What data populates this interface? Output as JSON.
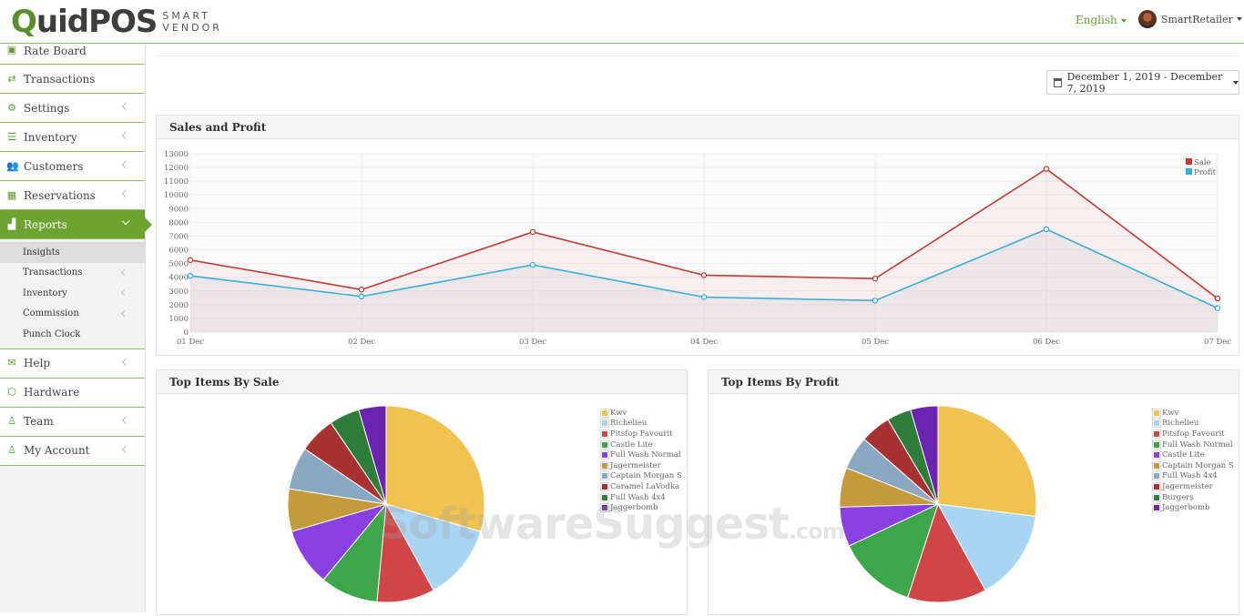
{
  "header": {
    "logo_main": "QuidPOS",
    "logo_sub_1": "SMART",
    "logo_sub_2": "VENDOR",
    "language": "English",
    "user_name": "SmartRetailer"
  },
  "sidebar": {
    "items": [
      {
        "label": "Rate Board",
        "icon": "rate-board-icon"
      },
      {
        "label": "Transactions",
        "icon": "exchange-icon"
      },
      {
        "label": "Settings",
        "icon": "gear-icon"
      },
      {
        "label": "Inventory",
        "icon": "list-icon"
      },
      {
        "label": "Customers",
        "icon": "users-icon"
      },
      {
        "label": "Reservations",
        "icon": "calendar-icon"
      },
      {
        "label": "Reports",
        "icon": "bar-chart-icon"
      },
      {
        "label": "Help",
        "icon": "envelope-icon"
      },
      {
        "label": "Hardware",
        "icon": "cube-icon"
      },
      {
        "label": "Team",
        "icon": "team-icon"
      },
      {
        "label": "My Account",
        "icon": "user-icon"
      }
    ],
    "reports_sub": [
      {
        "label": "Insights"
      },
      {
        "label": "Transactions"
      },
      {
        "label": "Inventory"
      },
      {
        "label": "Commission"
      },
      {
        "label": "Punch Clock"
      }
    ]
  },
  "date_range": "December 1, 2019 - December 7, 2019",
  "panels": {
    "sales_profit_title": "Sales and Profit",
    "top_sale_title": "Top Items By Sale",
    "top_profit_title": "Top Items By Profit"
  },
  "watermark": {
    "main": "SoftwareSuggest",
    "suffix": ".com"
  },
  "chart_data": [
    {
      "type": "line",
      "title": "Sales and Profit",
      "categories": [
        "01 Dec",
        "02 Dec",
        "03 Dec",
        "04 Dec",
        "05 Dec",
        "06 Dec",
        "07 Dec"
      ],
      "series": [
        {
          "name": "Sale",
          "color": "#c23b35",
          "values": [
            5250,
            3100,
            7300,
            4150,
            3900,
            11900,
            2450
          ]
        },
        {
          "name": "Profit",
          "color": "#3aaedb",
          "values": [
            4100,
            2600,
            4900,
            2550,
            2300,
            7500,
            1750
          ]
        }
      ],
      "ylim": [
        0,
        13000
      ],
      "yticks": [
        0,
        1000,
        2000,
        3000,
        4000,
        5000,
        6000,
        7000,
        8000,
        9000,
        10000,
        11000,
        12000,
        13000
      ],
      "grid": true,
      "legend": "top-right"
    },
    {
      "type": "pie",
      "title": "Top Items By Sale",
      "labels": [
        "Kwv",
        "Richelieu",
        "Pitsfop Favourit",
        "Castle Lite",
        "Full Wash Normal",
        "Jagermeister",
        "Captain Morgan S",
        "Caramel LaVodka",
        "Full Wash 4x4",
        "Jaggerbomb"
      ],
      "values": [
        29.5,
        12.5,
        9.5,
        9.5,
        9.5,
        7.0,
        7.0,
        6.0,
        5.0,
        4.5
      ],
      "colors": [
        "#f0c350",
        "#a9d5f3",
        "#d04545",
        "#3da54a",
        "#8a3fe0",
        "#c49a3c",
        "#8aa8c2",
        "#a83232",
        "#2e7d3a",
        "#6a24b0"
      ],
      "legend": "right"
    },
    {
      "type": "pie",
      "title": "Top Items By Profit",
      "labels": [
        "Kwv",
        "Richelieu",
        "Pitsfop Favourit",
        "Full Wash Normal",
        "Castle Lite",
        "Captain Morgan S",
        "Full Wash 4x4",
        "Jagermeister",
        "Burgers",
        "Jaggerbomb"
      ],
      "values": [
        27.0,
        15.0,
        13.0,
        13.0,
        6.5,
        6.5,
        5.5,
        5.0,
        4.0,
        4.5
      ],
      "colors": [
        "#f0c350",
        "#a9d5f3",
        "#d04545",
        "#3da54a",
        "#8a3fe0",
        "#c49a3c",
        "#8aa8c2",
        "#a83232",
        "#2e7d3a",
        "#6a24b0"
      ],
      "legend": "right"
    }
  ]
}
